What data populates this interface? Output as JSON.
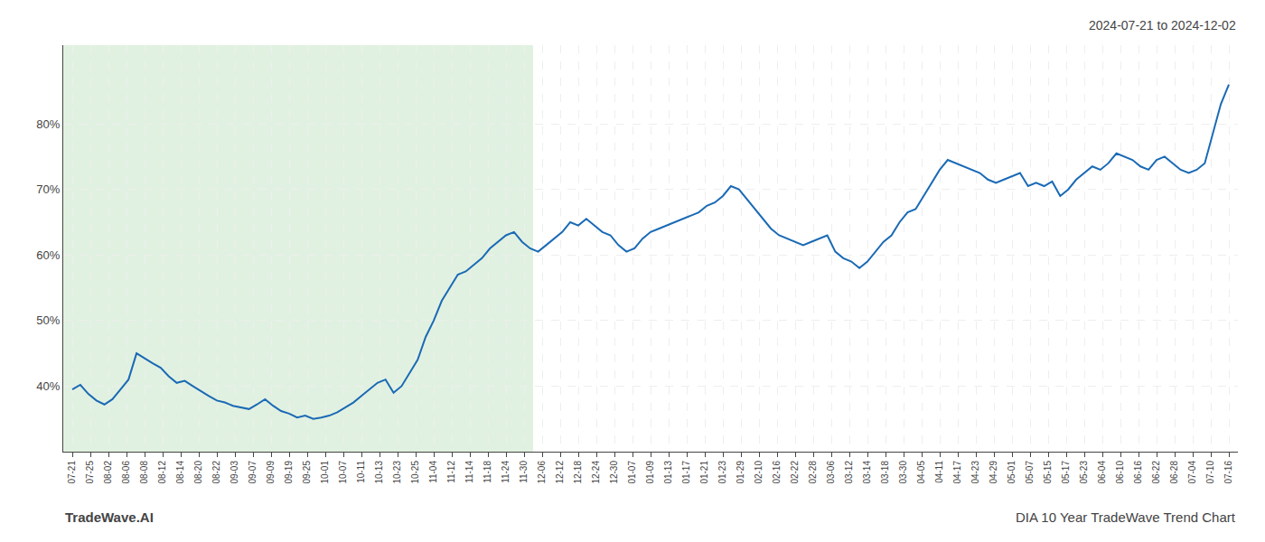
{
  "chart_data": {
    "type": "line",
    "subtitle": "2024-07-21 to 2024-12-02",
    "annotations": [
      "TradeWave.AI",
      "DIA 10 Year TradeWave Trend Chart"
    ],
    "color": "#1a6ab5",
    "grid": true,
    "shade": {
      "x": [
        -0.5,
        25.5
      ],
      "color": "#c8e6c8"
    },
    "xlim": [
      -0.5,
      64.5
    ],
    "xticks": [
      {
        "value": 0,
        "label": "07-21"
      },
      {
        "value": 1,
        "label": "07-25"
      },
      {
        "value": 2,
        "label": "08-02"
      },
      {
        "value": 3,
        "label": "08-06"
      },
      {
        "value": 4,
        "label": "08-08"
      },
      {
        "value": 5,
        "label": "08-12"
      },
      {
        "value": 6,
        "label": "08-14"
      },
      {
        "value": 7,
        "label": "08-20"
      },
      {
        "value": 8,
        "label": "08-22"
      },
      {
        "value": 9,
        "label": "09-03"
      },
      {
        "value": 10,
        "label": "09-07"
      },
      {
        "value": 11,
        "label": "09-09"
      },
      {
        "value": 12,
        "label": "09-19"
      },
      {
        "value": 13,
        "label": "09-25"
      },
      {
        "value": 14,
        "label": "10-01"
      },
      {
        "value": 15,
        "label": "10-07"
      },
      {
        "value": 16,
        "label": "10-11"
      },
      {
        "value": 17,
        "label": "10-13"
      },
      {
        "value": 18,
        "label": "10-23"
      },
      {
        "value": 19,
        "label": "10-25"
      },
      {
        "value": 20,
        "label": "11-04"
      },
      {
        "value": 21,
        "label": "11-12"
      },
      {
        "value": 22,
        "label": "11-14"
      },
      {
        "value": 23,
        "label": "11-18"
      },
      {
        "value": 24,
        "label": "11-24"
      },
      {
        "value": 25,
        "label": "11-30"
      },
      {
        "value": 26,
        "label": "12-06"
      },
      {
        "value": 27,
        "label": "12-12"
      },
      {
        "value": 28,
        "label": "12-18"
      },
      {
        "value": 29,
        "label": "12-24"
      },
      {
        "value": 30,
        "label": "12-30"
      },
      {
        "value": 31,
        "label": "01-07"
      },
      {
        "value": 32,
        "label": "01-09"
      },
      {
        "value": 33,
        "label": "01-13"
      },
      {
        "value": 34,
        "label": "01-17"
      },
      {
        "value": 35,
        "label": "01-21"
      },
      {
        "value": 36,
        "label": "01-23"
      },
      {
        "value": 37,
        "label": "01-29"
      },
      {
        "value": 38,
        "label": "02-10"
      },
      {
        "value": 39,
        "label": "02-16"
      },
      {
        "value": 40,
        "label": "02-22"
      },
      {
        "value": 41,
        "label": "02-28"
      },
      {
        "value": 42,
        "label": "03-06"
      },
      {
        "value": 43,
        "label": "03-12"
      },
      {
        "value": 44,
        "label": "03-14"
      },
      {
        "value": 45,
        "label": "03-18"
      },
      {
        "value": 46,
        "label": "03-30"
      },
      {
        "value": 47,
        "label": "04-05"
      },
      {
        "value": 48,
        "label": "04-11"
      },
      {
        "value": 49,
        "label": "04-17"
      },
      {
        "value": 50,
        "label": "04-23"
      },
      {
        "value": 51,
        "label": "04-29"
      },
      {
        "value": 52,
        "label": "05-01"
      },
      {
        "value": 53,
        "label": "05-07"
      },
      {
        "value": 54,
        "label": "05-15"
      },
      {
        "value": 55,
        "label": "05-17"
      },
      {
        "value": 56,
        "label": "05-23"
      },
      {
        "value": 57,
        "label": "06-04"
      },
      {
        "value": 58,
        "label": "06-10"
      },
      {
        "value": 59,
        "label": "06-16"
      },
      {
        "value": 60,
        "label": "06-22"
      },
      {
        "value": 61,
        "label": "06-28"
      },
      {
        "value": 62,
        "label": "07-04"
      },
      {
        "value": 63,
        "label": "07-10"
      },
      {
        "value": 64,
        "label": "07-16"
      }
    ],
    "ylim": [
      30,
      92
    ],
    "yticks": [
      {
        "value": 40,
        "label": "40%"
      },
      {
        "value": 50,
        "label": "50%"
      },
      {
        "value": 60,
        "label": "60%"
      },
      {
        "value": 70,
        "label": "70%"
      },
      {
        "value": 80,
        "label": "80%"
      }
    ],
    "x": [
      0,
      0.444444444444,
      0.888888888889,
      1.333333333333,
      1.777777777778,
      2.222222222222,
      2.666666666667,
      3.111111111111,
      3.555555555556,
      4,
      4.444444444444,
      4.888888888889,
      5.333333333333,
      5.777777777778,
      6.222222222222,
      6.666666666667,
      7.111111111111,
      7.555555555556,
      8,
      8.444444444444,
      8.888888888889,
      9.333333333333,
      9.777777777778,
      10.222222222222,
      10.666666666667,
      11.111111111111,
      11.555555555556,
      12,
      12.444444444444,
      12.888888888889,
      13.333333333333,
      13.777777777778,
      14.222222222222,
      14.666666666667,
      15.111111111111,
      15.555555555556,
      16,
      16.444444444444,
      16.888888888889,
      17.333333333333,
      17.777777777778,
      18.222222222222,
      18.666666666667,
      19.111111111111,
      19.555555555556,
      20,
      20.444444444444,
      20.888888888889,
      21.333333333333,
      21.777777777778,
      22.222222222222,
      22.666666666667,
      23.111111111111,
      23.555555555556,
      24,
      24.444444444444,
      24.888888888889,
      25.333333333333,
      25.777777777778,
      26.222222222222,
      26.666666666667,
      27.111111111111,
      27.555555555556,
      28,
      28.444444444444,
      28.888888888889,
      29.333333333333,
      29.777777777778,
      30.222222222222,
      30.666666666667,
      31.111111111111,
      31.555555555556,
      32,
      32.444444444444,
      32.888888888889,
      33.333333333333,
      33.777777777778,
      34.222222222222,
      34.666666666667,
      35.111111111111,
      35.555555555556,
      36,
      36.444444444444,
      36.888888888889,
      37.333333333333,
      37.777777777778,
      38.222222222222,
      38.666666666667,
      39.111111111111,
      39.555555555556,
      40,
      40.444444444444,
      40.888888888889,
      41.333333333333,
      41.777777777778,
      42.222222222222,
      42.666666666667,
      43.111111111111,
      43.555555555556,
      44,
      44.444444444444,
      44.888888888889,
      45.333333333333,
      45.777777777778,
      46.222222222222,
      46.666666666667,
      47.111111111111,
      47.555555555556,
      48,
      48.444444444444,
      48.888888888889,
      49.333333333333,
      49.777777777778,
      50.222222222222,
      50.666666666667,
      51.111111111111,
      51.555555555556,
      52,
      52.444444444444,
      52.888888888889,
      53.333333333333,
      53.777777777778,
      54.222222222222,
      54.666666666667,
      55.111111111111,
      55.555555555556,
      56,
      56.444444444444,
      56.888888888889,
      57.333333333333,
      57.777777777778,
      58.222222222222,
      58.666666666667,
      59.111111111111,
      59.555555555556,
      60,
      60.444444444444,
      60.888888888889,
      61.333333333333,
      61.777777777778,
      62.222222222222,
      62.666666666667,
      63.111111111111,
      63.555555555556,
      64
    ],
    "values": [
      39.5,
      40.2,
      38.8,
      37.8,
      37.2,
      38.0,
      39.5,
      41.0,
      45.0,
      44.2,
      43.5,
      42.8,
      41.5,
      40.5,
      40.8,
      40.0,
      39.2,
      38.5,
      37.8,
      37.5,
      37.0,
      36.8,
      36.5,
      37.2,
      38.0,
      37.0,
      36.2,
      35.8,
      35.2,
      35.5,
      35.0,
      35.2,
      35.5,
      36.0,
      36.8,
      37.5,
      38.5,
      39.5,
      40.5,
      41.0,
      39.0,
      40.0,
      42.0,
      44.0,
      47.5,
      50.0,
      53.0,
      55.0,
      57.0,
      57.5,
      58.5,
      59.5,
      61.0,
      62.0,
      63.0,
      63.5,
      62.0,
      61.0,
      60.5,
      61.5,
      62.5,
      63.5,
      65.0,
      64.5,
      65.5,
      64.5,
      63.5,
      63.0,
      61.5,
      60.5,
      61.0,
      62.5,
      63.5,
      64.0,
      64.5,
      65.0,
      65.5,
      66.0,
      66.5,
      67.5,
      68.0,
      69.0,
      70.5,
      70.0,
      68.5,
      67.0,
      65.5,
      64.0,
      63.0,
      62.5,
      62.0,
      61.5,
      62.0,
      62.5,
      63.0,
      60.5,
      59.5,
      59.0,
      58.0,
      59.0,
      60.5,
      62.0,
      63.0,
      65.0,
      66.5,
      67.0,
      69.0,
      71.0,
      73.0,
      74.5,
      74.0,
      73.5,
      73.0,
      72.5,
      71.5,
      71.0,
      71.5,
      72.0,
      72.5,
      70.5,
      71.0,
      70.5,
      71.2,
      69.0,
      70.0,
      71.5,
      72.5,
      73.5,
      73.0,
      74.0,
      75.5,
      75.0,
      74.5,
      73.5,
      73.0,
      74.5,
      75.0,
      74.0,
      73.0,
      72.5,
      73.0,
      74.0,
      78.5,
      83.0,
      86.0
    ]
  }
}
